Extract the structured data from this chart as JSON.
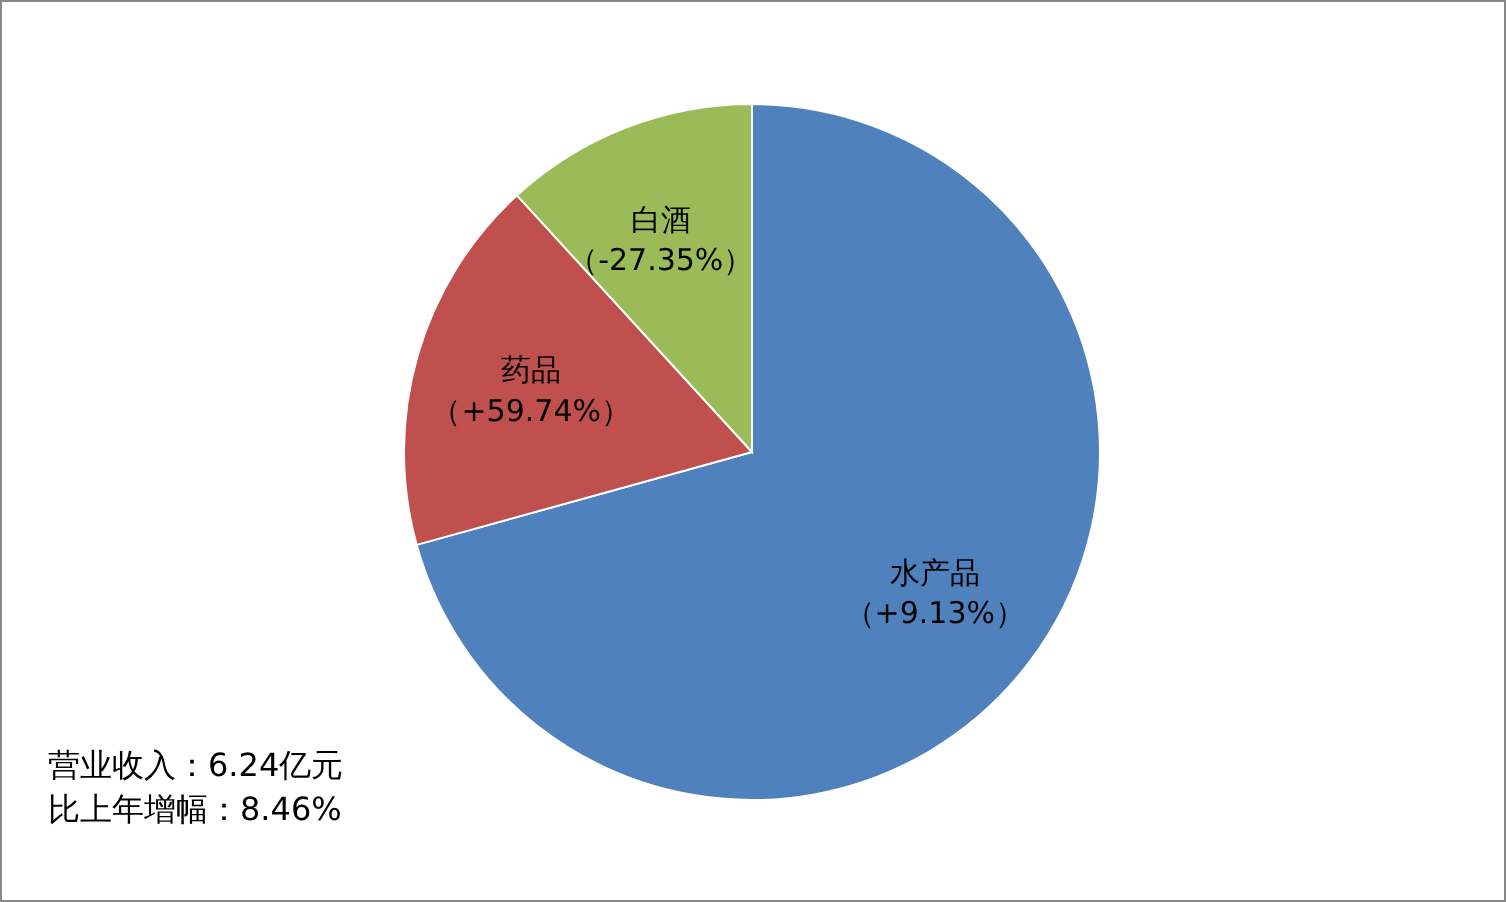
{
  "chart_data": {
    "type": "pie",
    "categories": [
      "水产品（+9.13%）",
      "药品（+59.74%）",
      "白酒（-27.35%）"
    ],
    "values": [
      70.7,
      17.5,
      11.8
    ],
    "colors": [
      "#4f81bd",
      "#c0504d",
      "#9bbb59"
    ],
    "annotations": [
      "营业收入：6.24亿元",
      "比上年增幅：8.46%"
    ]
  }
}
